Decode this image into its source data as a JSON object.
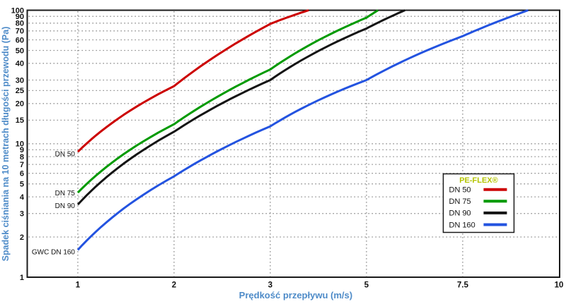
{
  "chart_data": {
    "type": "line",
    "title": "",
    "xlabel": "Prędkość przepływu (m/s)",
    "ylabel": "Spadek ciśniania na 10 metrach długości przewodu (Pa)",
    "x_scale": "irregular ticks, evenly spaced",
    "y_scale": "log",
    "xlim": [
      1,
      10
    ],
    "ylim": [
      1,
      100
    ],
    "x_ticks": [
      1,
      2,
      3,
      5,
      7.5,
      10
    ],
    "x_tick_labels": [
      "1",
      "2",
      "3",
      "5",
      "7.5",
      "10"
    ],
    "y_ticks": [
      1,
      2,
      3,
      4,
      5,
      6,
      7,
      8,
      9,
      10,
      15,
      20,
      25,
      30,
      40,
      50,
      60,
      70,
      80,
      90,
      100
    ],
    "grid": "dotted",
    "colors": {
      "axis_title": "#4e8bc8",
      "tick_label": "#111111",
      "grid": "#8f8f8f",
      "frame": "#1a1a1a",
      "curve_label": "#111111",
      "legend_title": "#b4c400",
      "legend_border": "#1a1a1a",
      "legend_background": "#ffffff"
    },
    "legend": {
      "title": "PE-FLEX®",
      "position": "right-center",
      "entries": [
        {
          "label": "DN 50",
          "color": "#cc0000"
        },
        {
          "label": "DN 75",
          "color": "#009a00"
        },
        {
          "label": "DN 90",
          "color": "#141414"
        },
        {
          "label": "DN 160",
          "color": "#2353e0"
        }
      ]
    },
    "series": [
      {
        "name": "DN 50",
        "color": "#cc0000",
        "points": [
          [
            1,
            8.7
          ],
          [
            2,
            27
          ],
          [
            3,
            79
          ],
          [
            3.8,
            100
          ]
        ]
      },
      {
        "name": "DN 75",
        "color": "#009a00",
        "points": [
          [
            1,
            4.3
          ],
          [
            2,
            14
          ],
          [
            3,
            36
          ],
          [
            5,
            88
          ],
          [
            5.3,
            100
          ]
        ]
      },
      {
        "name": "DN 90",
        "color": "#141414",
        "points": [
          [
            1,
            3.5
          ],
          [
            2,
            12.3
          ],
          [
            3,
            30
          ],
          [
            5,
            73
          ],
          [
            6,
            100
          ]
        ]
      },
      {
        "name": "DN 160",
        "color": "#2353e0",
        "points": [
          [
            1,
            1.6
          ],
          [
            2,
            5.7
          ],
          [
            3,
            13.5
          ],
          [
            5,
            30
          ],
          [
            7.5,
            64
          ],
          [
            9.2,
            100
          ]
        ]
      }
    ],
    "curve_labels": [
      {
        "text": "DN 50",
        "x": 1,
        "y": 8.4
      },
      {
        "text": "DN 75",
        "x": 1,
        "y": 4.28
      },
      {
        "text": "DN 90",
        "x": 1,
        "y": 3.43
      },
      {
        "text": "GWC DN 160",
        "x": 1,
        "y": 1.55
      }
    ]
  }
}
